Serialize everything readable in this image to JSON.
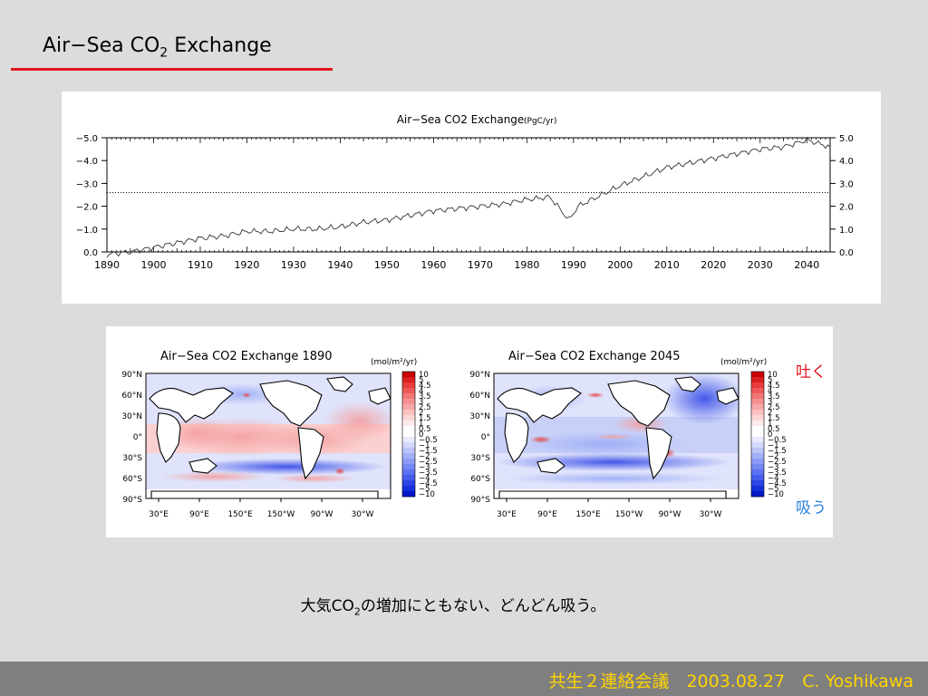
{
  "slide": {
    "title_main": "Air−Sea CO",
    "title_sub": "2",
    "title_tail": " Exchange",
    "label_emit": "吐く",
    "label_absorb": "吸う",
    "caption_pre": "大気CO",
    "caption_sub": "2",
    "caption_post": "の増加にともない、どんどん吸う。",
    "footer": "共生２連絡会議　2003.08.27　C. Yoshikawa"
  },
  "colors": {
    "background": "#dcdcdc",
    "accent_red": "#e3141b",
    "accent_blue": "#2a7fe0",
    "footer_bg": "#7f7f7f",
    "footer_text": "#ffd400"
  },
  "chart_data": [
    {
      "type": "line",
      "title": "Air−Sea CO2 Exchange",
      "units": "(PgC/yr)",
      "xlim": [
        1890,
        2045
      ],
      "ylim": [
        0.0,
        -5.0
      ],
      "xticks": [
        "1890",
        "1900",
        "1910",
        "1920",
        "1930",
        "1940",
        "1950",
        "1960",
        "1970",
        "1980",
        "1990",
        "2000",
        "2010",
        "2020",
        "2030",
        "2040"
      ],
      "yticks": [
        "0.0",
        "−1.0",
        "−2.0",
        "−3.0",
        "−4.0",
        "−5.0"
      ],
      "yticks_right": [
        "0.0",
        "1.0",
        "2.0",
        "3.0",
        "4.0",
        "5.0"
      ],
      "reference_line": -2.6,
      "series": [
        {
          "x": [
            1890,
            1895,
            1900,
            1905,
            1910,
            1915,
            1920,
            1925,
            1930,
            1935,
            1940,
            1945,
            1950,
            1955,
            1960,
            1965,
            1970,
            1975,
            1980,
            1985,
            1989,
            1991,
            1995,
            2000,
            2005,
            2010,
            2015,
            2020,
            2025,
            2030,
            2035,
            2040,
            2045
          ],
          "values": [
            0.1,
            0.0,
            -0.2,
            -0.4,
            -0.6,
            -0.7,
            -0.9,
            -0.9,
            -1.0,
            -1.0,
            -1.1,
            -1.3,
            -1.4,
            -1.6,
            -1.8,
            -1.9,
            -2.0,
            -2.1,
            -2.3,
            -2.4,
            -1.4,
            -2.0,
            -2.4,
            -2.9,
            -3.3,
            -3.7,
            -3.9,
            -4.1,
            -4.3,
            -4.5,
            -4.6,
            -4.9,
            -4.6
          ]
        }
      ]
    },
    {
      "type": "heatmap",
      "title": "Air−Sea CO2 Exchange 1890",
      "units": "(mol/m²/yr)",
      "ylabels": [
        "90°N",
        "60°N",
        "30°N",
        "0°",
        "30°S",
        "60°S",
        "90°S"
      ],
      "xlabels": [
        "30°E",
        "90°E",
        "150°E",
        "150°W",
        "90°W",
        "30°W"
      ]
    },
    {
      "type": "heatmap",
      "title": "Air−Sea CO2 Exchange 2045",
      "units": "(mol/m²/yr)",
      "ylabels": [
        "90°N",
        "60°N",
        "30°N",
        "0°",
        "30°S",
        "60°S",
        "90°S"
      ],
      "xlabels": [
        "30°E",
        "90°E",
        "150°E",
        "150°W",
        "90°W",
        "30°W"
      ]
    }
  ],
  "colorbar": {
    "labels": [
      "10",
      "5",
      "4.5",
      "4",
      "3.5",
      "3",
      "2.5",
      "2",
      "1.5",
      "1",
      "0.5",
      "0",
      "−0.5",
      "−1",
      "−1.5",
      "−2",
      "−2.5",
      "−3",
      "−3.5",
      "−4",
      "−4.5",
      "−5",
      "−10"
    ],
    "colors": [
      "#c80000",
      "#dc1e1e",
      "#e83c3c",
      "#ee5a5a",
      "#f27676",
      "#f59090",
      "#f8a8a8",
      "#fbc0c0",
      "#fdd6d6",
      "#feeaea",
      "#ffffff",
      "#ffffff",
      "#eaeafe",
      "#d4d8fc",
      "#bcc4fa",
      "#a4b0f8",
      "#8c9cf6",
      "#7488f4",
      "#5c72f0",
      "#445cec",
      "#2c44e6",
      "#1430dc",
      "#0018c8"
    ]
  }
}
